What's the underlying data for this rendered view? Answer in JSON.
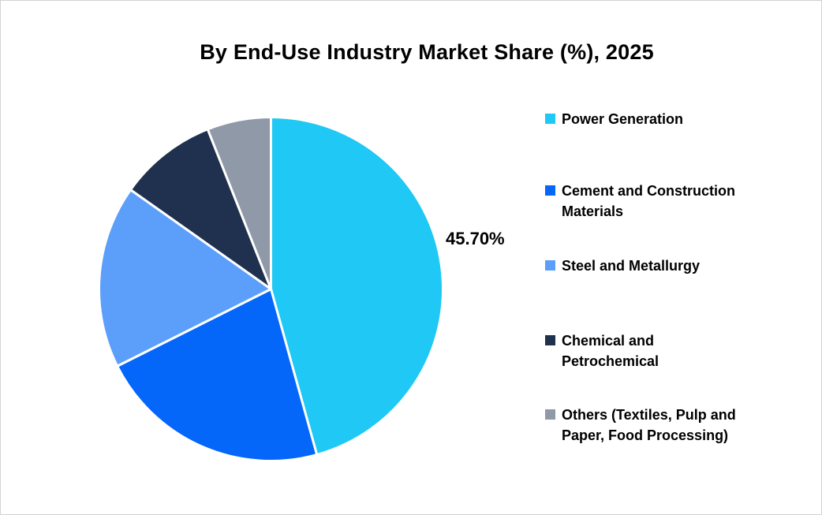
{
  "title": "By End-Use Industry Market Share (%), 2025",
  "pie": {
    "data_label": "45.70%"
  },
  "legend": {
    "items": [
      {
        "label": "Power Generation",
        "lines": [
          "Power Generation"
        ],
        "color": "#1fc8f5"
      },
      {
        "label": "Cement and Construction Materials",
        "lines": [
          "Cement and Construction",
          "Materials"
        ],
        "color": "#0566fa"
      },
      {
        "label": "Steel and Metallurgy",
        "lines": [
          "Steel and Metallurgy"
        ],
        "color": "#5c9ffa"
      },
      {
        "label": "Chemical and Petrochemical",
        "lines": [
          "Chemical and",
          "Petrochemical"
        ],
        "color": "#20314f"
      },
      {
        "label": "Others (Textiles, Pulp and Paper, Food Processing)",
        "lines": [
          "Others (Textiles, Pulp and",
          "Paper, Food Processing)"
        ],
        "color": "#8f99a8"
      }
    ]
  },
  "chart_data": {
    "type": "pie",
    "title": "By End-Use Industry Market Share (%), 2025",
    "categories": [
      "Power Generation",
      "Cement and Construction Materials",
      "Steel and Metallurgy",
      "Chemical and Petrochemical",
      "Others (Textiles, Pulp and Paper, Food Processing)"
    ],
    "values": [
      45.7,
      21.9,
      17.2,
      9.2,
      6.0
    ],
    "unit": "%",
    "colors": [
      "#1fc8f5",
      "#0566fa",
      "#5c9ffa",
      "#20314f",
      "#8f99a8"
    ],
    "data_labels": [
      "45.70%",
      "",
      "",
      "",
      ""
    ],
    "start_angle_deg": 0,
    "direction": "clockwise",
    "slice_border_color": "#ffffff",
    "legend_position": "right",
    "background_color": "#ffffff",
    "border_color": "#d2d2d2"
  }
}
